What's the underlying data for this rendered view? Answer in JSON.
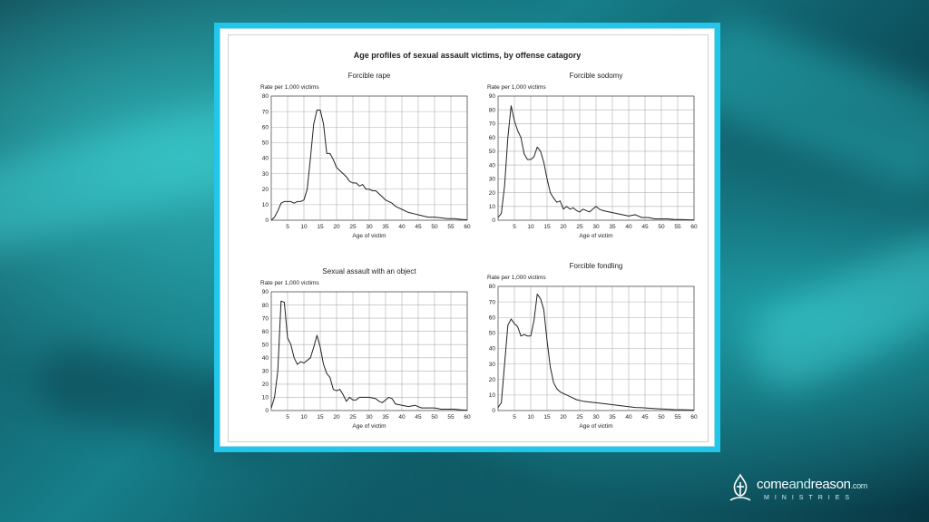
{
  "title": "Age profiles of sexual assault victims, by offense catagory",
  "brand": {
    "come": "come",
    "and": "and",
    "reason": "reason",
    "com": ".com",
    "sub": "MINISTRIES",
    "logo_icon": "flame-cross-logo-icon"
  },
  "colors": {
    "frame": "#21c6ea",
    "line": "#222222",
    "grid": "#b0b0b0"
  },
  "chart_data": [
    {
      "type": "line",
      "title": "Forcible rape",
      "ylabel": "Rate per 1,000 victims",
      "xlabel": "Age of victim",
      "xlim": [
        0,
        60
      ],
      "ylim": [
        0,
        80
      ],
      "xticks": [
        5,
        10,
        15,
        20,
        25,
        30,
        35,
        40,
        45,
        50,
        55,
        60
      ],
      "yticks": [
        0,
        10,
        20,
        30,
        40,
        50,
        60,
        70,
        80
      ],
      "grid": true,
      "x": [
        0,
        1,
        2,
        3,
        4,
        5,
        6,
        7,
        8,
        9,
        10,
        11,
        12,
        13,
        14,
        15,
        16,
        17,
        18,
        19,
        20,
        21,
        22,
        23,
        24,
        25,
        26,
        27,
        28,
        29,
        30,
        31,
        32,
        33,
        34,
        35,
        36,
        37,
        38,
        39,
        40,
        42,
        44,
        46,
        48,
        50,
        52,
        54,
        56,
        58,
        60
      ],
      "y": [
        0,
        2,
        6,
        11,
        12,
        12,
        12,
        11,
        12,
        12,
        13,
        20,
        40,
        62,
        71,
        71,
        62,
        43,
        43,
        39,
        34,
        32,
        30,
        28,
        25,
        24,
        24,
        22,
        23,
        20,
        20,
        19,
        19,
        17,
        15,
        13,
        12,
        11,
        9,
        8,
        7,
        5,
        4,
        3,
        2,
        2,
        1.5,
        1,
        1,
        0.5,
        0.3
      ]
    },
    {
      "type": "line",
      "title": "Forcible sodomy",
      "ylabel": "Rate per 1,000 victims",
      "xlabel": "Age of victim",
      "xlim": [
        0,
        60
      ],
      "ylim": [
        0,
        90
      ],
      "xticks": [
        5,
        10,
        15,
        20,
        25,
        30,
        35,
        40,
        45,
        50,
        55,
        60
      ],
      "yticks": [
        0,
        10,
        20,
        30,
        40,
        50,
        60,
        70,
        80,
        90
      ],
      "grid": true,
      "x": [
        0,
        1,
        2,
        3,
        4,
        5,
        6,
        7,
        8,
        9,
        10,
        11,
        12,
        13,
        14,
        15,
        16,
        17,
        18,
        19,
        20,
        21,
        22,
        23,
        24,
        25,
        26,
        27,
        28,
        29,
        30,
        31,
        32,
        34,
        36,
        38,
        40,
        42,
        44,
        46,
        48,
        50,
        52,
        54,
        56,
        58,
        60
      ],
      "y": [
        2,
        5,
        25,
        60,
        83,
        72,
        65,
        60,
        48,
        44,
        44,
        46,
        53,
        50,
        42,
        30,
        20,
        16,
        13,
        14,
        8,
        10,
        8,
        9,
        7,
        6,
        8,
        7,
        6,
        8,
        10,
        8,
        7,
        6,
        5,
        4,
        3,
        4,
        2,
        2,
        1,
        1,
        1,
        0.5,
        0.5,
        0.3,
        0.2
      ]
    },
    {
      "type": "line",
      "title": "Sexual assault with an object",
      "ylabel": "Rate per 1,000 victims",
      "xlabel": "Age of victim",
      "xlim": [
        0,
        60
      ],
      "ylim": [
        0,
        90
      ],
      "xticks": [
        5,
        10,
        15,
        20,
        25,
        30,
        35,
        40,
        45,
        50,
        55,
        60
      ],
      "yticks": [
        0,
        10,
        20,
        30,
        40,
        50,
        60,
        70,
        80,
        90
      ],
      "grid": true,
      "x": [
        0,
        1,
        2,
        3,
        4,
        5,
        6,
        7,
        8,
        9,
        10,
        11,
        12,
        13,
        14,
        15,
        16,
        17,
        18,
        19,
        20,
        21,
        22,
        23,
        24,
        25,
        26,
        27,
        28,
        30,
        32,
        33,
        34,
        35,
        36,
        37,
        38,
        40,
        42,
        44,
        46,
        48,
        50,
        52,
        54,
        56,
        58,
        60
      ],
      "y": [
        2,
        10,
        30,
        83,
        82,
        55,
        50,
        40,
        35,
        37,
        36,
        38,
        40,
        48,
        57,
        48,
        35,
        28,
        25,
        16,
        15,
        16,
        12,
        7,
        10,
        8,
        8,
        10,
        10,
        10,
        9,
        7,
        6,
        8,
        10,
        9,
        5,
        4,
        3,
        4,
        2,
        2,
        2,
        1,
        1,
        1,
        0.5,
        0.3
      ]
    },
    {
      "type": "line",
      "title": "Forcible fondling",
      "ylabel": "Rate per 1,000 victims",
      "xlabel": "Age of victim",
      "xlim": [
        0,
        60
      ],
      "ylim": [
        0,
        80
      ],
      "xticks": [
        5,
        10,
        15,
        20,
        25,
        30,
        35,
        40,
        45,
        50,
        55,
        60
      ],
      "yticks": [
        0,
        10,
        20,
        30,
        40,
        50,
        60,
        70,
        80
      ],
      "grid": true,
      "x": [
        0,
        1,
        2,
        3,
        4,
        5,
        6,
        7,
        8,
        9,
        10,
        11,
        12,
        13,
        14,
        15,
        16,
        17,
        18,
        19,
        20,
        22,
        24,
        26,
        28,
        30,
        32,
        34,
        36,
        38,
        40,
        42,
        44,
        46,
        48,
        50,
        52,
        54,
        56,
        58,
        60
      ],
      "y": [
        2,
        5,
        30,
        55,
        59,
        56,
        54,
        48,
        49,
        48,
        48,
        58,
        75,
        72,
        65,
        45,
        28,
        18,
        14,
        12,
        11,
        9,
        7,
        6,
        5.5,
        5,
        4.5,
        4,
        3.5,
        3,
        2.5,
        2,
        1.8,
        1.5,
        1.2,
        1,
        0.8,
        0.6,
        0.5,
        0.4,
        0.3
      ]
    }
  ]
}
